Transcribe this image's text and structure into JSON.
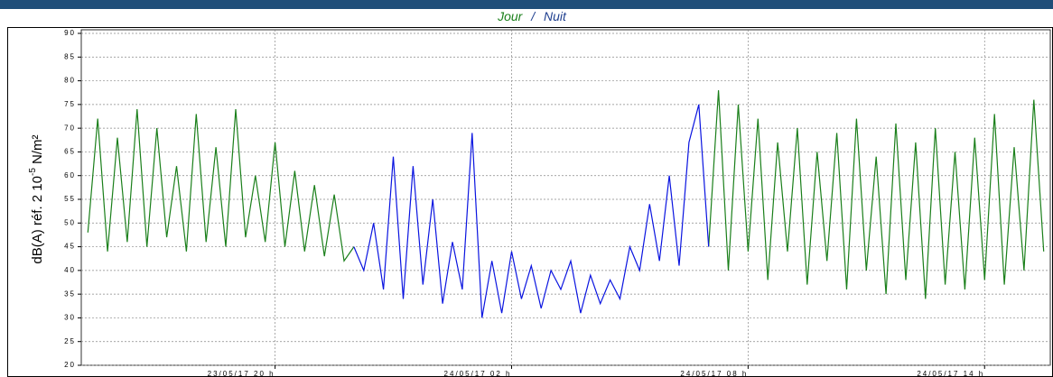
{
  "chart_data": {
    "type": "line",
    "series_separator": "/",
    "ylabel_parts": [
      "dB(A) réf. 2 10",
      "-5",
      " N/m²"
    ],
    "x": [
      "2017-05-23T15:15",
      "2017-05-23T15:30",
      "2017-05-23T15:45",
      "2017-05-23T16:00",
      "2017-05-23T16:15",
      "2017-05-23T16:30",
      "2017-05-23T16:45",
      "2017-05-23T17:00",
      "2017-05-23T17:15",
      "2017-05-23T17:30",
      "2017-05-23T17:45",
      "2017-05-23T18:00",
      "2017-05-23T18:15",
      "2017-05-23T18:30",
      "2017-05-23T18:45",
      "2017-05-23T19:00",
      "2017-05-23T19:15",
      "2017-05-23T19:30",
      "2017-05-23T19:45",
      "2017-05-23T20:00",
      "2017-05-23T20:15",
      "2017-05-23T20:30",
      "2017-05-23T20:45",
      "2017-05-23T21:00",
      "2017-05-23T21:15",
      "2017-05-23T21:30",
      "2017-05-23T21:45",
      "2017-05-23T22:00",
      "2017-05-23T22:15",
      "2017-05-23T22:30",
      "2017-05-23T22:45",
      "2017-05-23T23:00",
      "2017-05-23T23:15",
      "2017-05-23T23:30",
      "2017-05-23T23:45",
      "2017-05-24T00:00",
      "2017-05-24T00:15",
      "2017-05-24T00:30",
      "2017-05-24T00:45",
      "2017-05-24T01:00",
      "2017-05-24T01:15",
      "2017-05-24T01:30",
      "2017-05-24T01:45",
      "2017-05-24T02:00",
      "2017-05-24T02:15",
      "2017-05-24T02:30",
      "2017-05-24T02:45",
      "2017-05-24T03:00",
      "2017-05-24T03:15",
      "2017-05-24T03:30",
      "2017-05-24T03:45",
      "2017-05-24T04:00",
      "2017-05-24T04:15",
      "2017-05-24T04:30",
      "2017-05-24T04:45",
      "2017-05-24T05:00",
      "2017-05-24T05:15",
      "2017-05-24T05:30",
      "2017-05-24T05:45",
      "2017-05-24T06:00",
      "2017-05-24T06:15",
      "2017-05-24T06:30",
      "2017-05-24T06:45",
      "2017-05-24T07:00",
      "2017-05-24T07:15",
      "2017-05-24T07:30",
      "2017-05-24T07:45",
      "2017-05-24T08:00",
      "2017-05-24T08:15",
      "2017-05-24T08:30",
      "2017-05-24T08:45",
      "2017-05-24T09:00",
      "2017-05-24T09:15",
      "2017-05-24T09:30",
      "2017-05-24T09:45",
      "2017-05-24T10:00",
      "2017-05-24T10:15",
      "2017-05-24T10:30",
      "2017-05-24T10:45",
      "2017-05-24T11:00",
      "2017-05-24T11:15",
      "2017-05-24T11:30",
      "2017-05-24T11:45",
      "2017-05-24T12:00",
      "2017-05-24T12:15",
      "2017-05-24T12:30",
      "2017-05-24T12:45",
      "2017-05-24T13:00",
      "2017-05-24T13:15",
      "2017-05-24T13:30",
      "2017-05-24T13:45",
      "2017-05-24T14:00",
      "2017-05-24T14:15",
      "2017-05-24T14:30",
      "2017-05-24T14:45",
      "2017-05-24T15:00",
      "2017-05-24T15:15",
      "2017-05-24T15:30"
    ],
    "series": [
      {
        "name": "Jour",
        "color": "#1a7f1a",
        "values": [
          48,
          72,
          44,
          68,
          46,
          74,
          45,
          70,
          47,
          62,
          44,
          73,
          46,
          66,
          45,
          74,
          47,
          60,
          46,
          67,
          45,
          61,
          44,
          58,
          43,
          56,
          42,
          45,
          null,
          null,
          null,
          null,
          null,
          null,
          null,
          null,
          null,
          null,
          null,
          null,
          null,
          null,
          null,
          null,
          null,
          null,
          null,
          null,
          null,
          null,
          null,
          null,
          null,
          null,
          null,
          null,
          null,
          null,
          null,
          null,
          null,
          null,
          null,
          45,
          78,
          40,
          75,
          44,
          72,
          38,
          67,
          44,
          70,
          37,
          65,
          42,
          69,
          36,
          72,
          40,
          64,
          35,
          71,
          38,
          67,
          34,
          70,
          37,
          65,
          36,
          68,
          38,
          73,
          37,
          66,
          40,
          76,
          44
        ]
      },
      {
        "name": "Nuit",
        "color": "#0a14e0",
        "values": [
          null,
          null,
          null,
          null,
          null,
          null,
          null,
          null,
          null,
          null,
          null,
          null,
          null,
          null,
          null,
          null,
          null,
          null,
          null,
          null,
          null,
          null,
          null,
          null,
          null,
          null,
          null,
          45,
          40,
          50,
          36,
          64,
          34,
          62,
          37,
          55,
          33,
          46,
          36,
          69,
          30,
          42,
          31,
          44,
          34,
          41,
          32,
          40,
          36,
          42,
          31,
          39,
          33,
          38,
          34,
          45,
          40,
          54,
          42,
          60,
          41,
          67,
          75,
          45,
          null,
          null,
          null,
          null,
          null,
          null,
          null,
          null,
          null,
          null,
          null,
          null,
          null,
          null,
          null,
          null,
          null,
          null,
          null,
          null,
          null,
          null,
          null,
          null,
          null,
          null,
          null,
          null,
          null,
          null,
          null,
          null,
          null,
          null
        ]
      }
    ],
    "xlim": [
      "2017-05-23T15:05",
      "2017-05-24T15:40"
    ],
    "xticks": [
      {
        "value": "2017-05-23T20:00",
        "label": "23/05/17 20 h"
      },
      {
        "value": "2017-05-24T02:00",
        "label": "24/05/17 02 h"
      },
      {
        "value": "2017-05-24T08:00",
        "label": "24/05/17 08 h"
      },
      {
        "value": "2017-05-24T14:00",
        "label": "24/05/17 14 h"
      }
    ],
    "ylim": [
      20,
      90
    ],
    "yticks": [
      20,
      25,
      30,
      35,
      40,
      45,
      50,
      55,
      60,
      65,
      70,
      75,
      80,
      85,
      90
    ],
    "grid": true
  }
}
